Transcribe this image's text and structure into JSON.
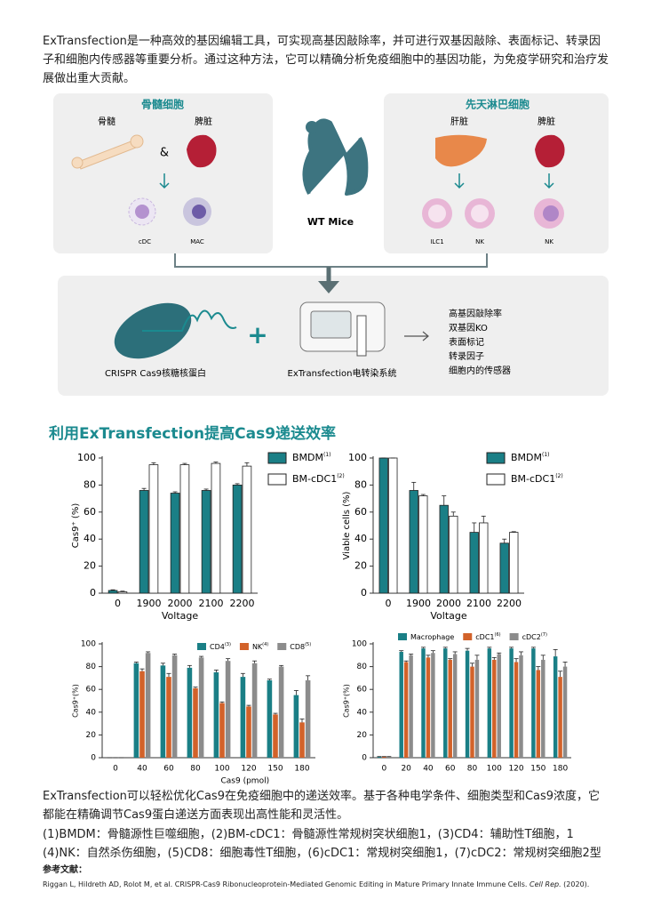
{
  "intro": "ExTransfection是一种高效的基因编辑工具，可实现高基因敲除率，并可进行双基因敲除、表面标记、转录因子和细胞内传感器等重要分析。通过这种方法，它可以精确分析免疫细胞中的基因功能，为免疫学研究和治疗发展做出重大贡献。",
  "diagram": {
    "left_title": "骨髓细胞",
    "bone_marrow": "骨髓",
    "spleen_left": "脾脏",
    "and": "&",
    "cdc": "cDC",
    "mac": "MAC",
    "mouse": "WT Mice",
    "right_title": "先天淋巴细胞",
    "liver": "肝脏",
    "spleen_right": "脾脏",
    "ilc1": "ILC1",
    "nk1": "NK",
    "nk2": "NK",
    "rnp": "CRISPR Cas9核糖核蛋白",
    "plus": "+",
    "system": "ExTransfection电转染系统",
    "outcomes": [
      "高基因敲除率",
      "双基因KO",
      "表面标记",
      "转录因子",
      "细胞内的传感器"
    ]
  },
  "section_title": "利用ExTransfection提高Cas9递送效率",
  "chart_data": [
    {
      "type": "bar",
      "ylabel": "Cas9⁺ (%)",
      "xlabel": "Voltage",
      "categories": [
        "0",
        "1900",
        "2000",
        "2100",
        "2200"
      ],
      "series": [
        {
          "name": "BMDM",
          "sup": "(1)",
          "color": "#1a7f86",
          "values": [
            2,
            76,
            74,
            76,
            80
          ],
          "errors": [
            0.5,
            1.5,
            1,
            1,
            1
          ]
        },
        {
          "name": "BM-cDC1",
          "sup": "(2)",
          "color": "#ffffff",
          "values": [
            1,
            95,
            95,
            96,
            94
          ],
          "errors": [
            0.5,
            1.5,
            1,
            1,
            2.5
          ]
        }
      ],
      "ylim": [
        0,
        100
      ],
      "yticks": [
        0,
        20,
        40,
        60,
        80,
        100
      ],
      "legend": "right",
      "edgecolor": "#222222"
    },
    {
      "type": "bar",
      "ylabel": "Viable cells (%)",
      "xlabel": "Voltage",
      "categories": [
        "0",
        "1900",
        "2000",
        "2100",
        "2200"
      ],
      "series": [
        {
          "name": "BMDM",
          "sup": "(1)",
          "color": "#1a7f86",
          "values": [
            100,
            76,
            65,
            45,
            37
          ],
          "errors": [
            0,
            6,
            7,
            7,
            3
          ]
        },
        {
          "name": "BM-cDC1",
          "sup": "(2)",
          "color": "#ffffff",
          "values": [
            100,
            72,
            57,
            52,
            45
          ],
          "errors": [
            0,
            1,
            3,
            5,
            0.5
          ]
        }
      ],
      "ylim": [
        0,
        100
      ],
      "yticks": [
        0,
        20,
        40,
        60,
        80,
        100
      ],
      "legend": "right",
      "edgecolor": "#222222"
    },
    {
      "type": "bar",
      "ylabel": "Cas9⁺(%)",
      "xlabel": "Cas9 (pmol)",
      "categories": [
        "0",
        "40",
        "60",
        "80",
        "100",
        "120",
        "150",
        "180"
      ],
      "series": [
        {
          "name": "CD4",
          "sup": "(3)",
          "color": "#1a7f86",
          "values": [
            0,
            83,
            81,
            79,
            75,
            71,
            68,
            55
          ],
          "errors": [
            0,
            1,
            2,
            2,
            2,
            3,
            1,
            4
          ]
        },
        {
          "name": "NK",
          "sup": "(4)",
          "color": "#d2622a",
          "values": [
            0,
            76,
            71,
            61,
            48,
            45,
            38,
            31
          ],
          "errors": [
            0,
            2,
            3,
            1,
            1,
            1,
            1,
            3
          ]
        },
        {
          "name": "CD8",
          "sup": "(5)",
          "color": "#8c8c8c",
          "values": [
            0,
            92,
            90,
            88,
            85,
            83,
            80,
            68
          ],
          "errors": [
            0,
            1,
            1,
            1,
            2,
            2,
            1,
            4
          ]
        }
      ],
      "ylim": [
        0,
        100
      ],
      "yticks": [
        0,
        20,
        40,
        60,
        80,
        100
      ],
      "legend": "top",
      "edgecolor": "none"
    },
    {
      "type": "bar",
      "ylabel": "Cas9⁺(%)",
      "categories": [
        "0",
        "20",
        "40",
        "60",
        "80",
        "100",
        "120",
        "150",
        "180"
      ],
      "series": [
        {
          "name": "Macrophage",
          "sup": "",
          "color": "#1a7f86",
          "values": [
            1,
            93,
            96,
            96,
            94,
            96,
            96,
            96,
            89
          ],
          "errors": [
            0,
            1,
            1,
            1,
            2,
            1,
            1,
            1,
            6
          ]
        },
        {
          "name": "cDC1",
          "sup": "(6)",
          "color": "#d2622a",
          "values": [
            1,
            84,
            88,
            86,
            80,
            86,
            84,
            77,
            71
          ],
          "errors": [
            0,
            1,
            2,
            1,
            3,
            2,
            3,
            3,
            5
          ]
        },
        {
          "name": "cDC2",
          "sup": "(7)",
          "color": "#8c8c8c",
          "values": [
            1,
            90,
            92,
            91,
            86,
            91,
            90,
            86,
            80
          ],
          "errors": [
            0,
            1,
            2,
            2,
            4,
            1,
            3,
            4,
            4
          ]
        }
      ],
      "ylim": [
        0,
        100
      ],
      "yticks": [
        0,
        20,
        40,
        60,
        80,
        100
      ],
      "legend": "top",
      "edgecolor": "none"
    }
  ],
  "description": "ExTransfection可以轻松优化Cas9在免疫细胞中的递送效率。基于各种电学条件、细胞类型和Cas9浓度，它都能在精确调节Cas9蛋白递送方面表现出高性能和灵活性。",
  "notes": "(1)BMDM：骨髓源性巨噬细胞，(2)BM-cDC1：骨髓源性常规树突状细胞1，(3)CD4：辅助性T细胞，1 (4)NK：自然杀伤细胞，(5)CD8：细胞毒性T细胞，(6)cDC1：常规树突细胞1，(7)cDC2：常规树突细胞2型",
  "references": {
    "title": "参考文献：",
    "citation": "Riggan L, Hildreth AD, Rolot M, et al. CRISPR-Cas9 Ribonucleoprotein-Mediated Genomic Editing in Mature Primary Innate Immune Cells.",
    "journal": "Cell Rep.",
    "year": "(2020)."
  }
}
